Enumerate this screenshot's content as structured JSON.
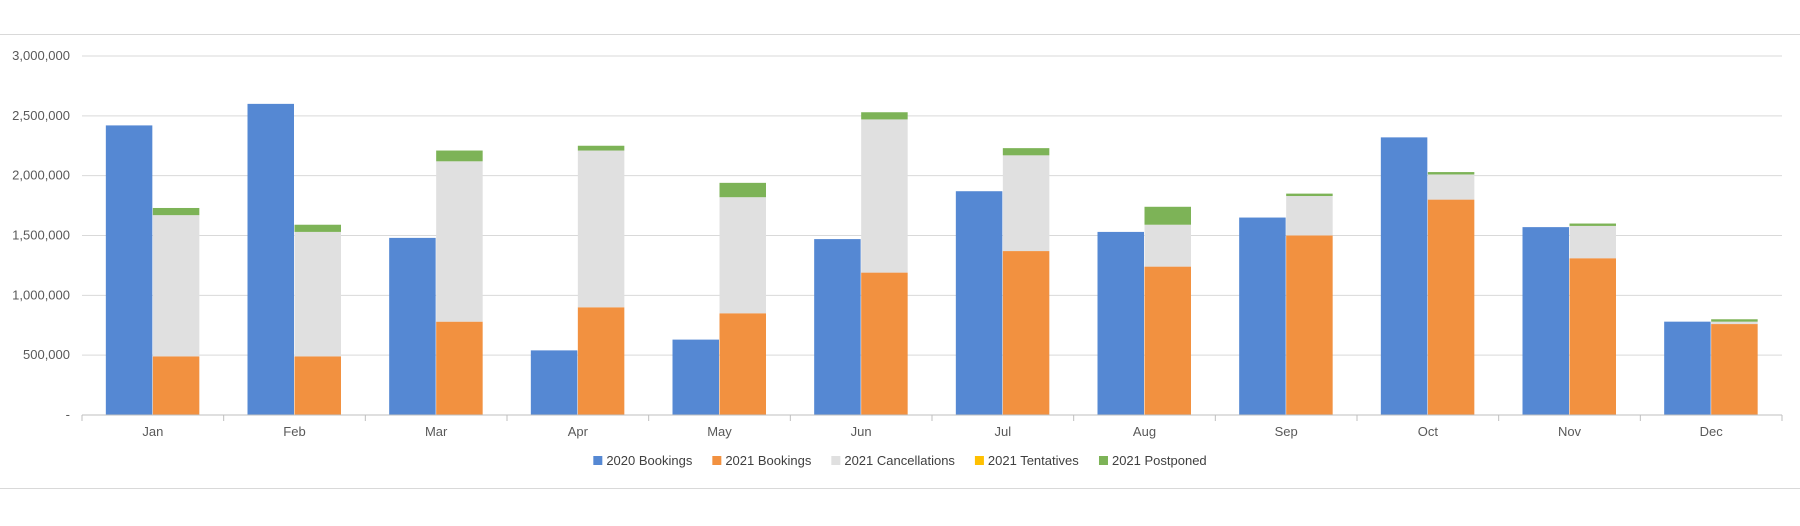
{
  "chart_data": {
    "type": "bar",
    "categories": [
      "Jan",
      "Feb",
      "Mar",
      "Apr",
      "May",
      "Jun",
      "Jul",
      "Aug",
      "Sep",
      "Oct",
      "Nov",
      "Dec"
    ],
    "title": "",
    "xlabel": "",
    "ylabel": "",
    "ylim": [
      0,
      3000000
    ],
    "y_ticks": [
      0,
      500000,
      1000000,
      1500000,
      2000000,
      2500000,
      3000000
    ],
    "y_tick_labels": [
      "-",
      "500,000",
      "1,000,000",
      "1,500,000",
      "2,000,000",
      "2,500,000",
      "3,000,000"
    ],
    "grid": true,
    "legend_position": "bottom",
    "series": [
      {
        "name": "2020 Bookings",
        "color": "#5588d3",
        "stack": "2020",
        "values": [
          2420000,
          2600000,
          1480000,
          540000,
          630000,
          1470000,
          1870000,
          1530000,
          1650000,
          2320000,
          1570000,
          780000
        ]
      },
      {
        "name": "2021 Bookings",
        "color": "#f29140",
        "stack": "2021",
        "values": [
          490000,
          490000,
          780000,
          900000,
          850000,
          1190000,
          1370000,
          1240000,
          1500000,
          1800000,
          1310000,
          760000
        ]
      },
      {
        "name": "2021 Cancellations",
        "color": "#e0e0e0",
        "stack": "2021",
        "values": [
          1180000,
          1040000,
          1340000,
          1310000,
          970000,
          1280000,
          800000,
          350000,
          330000,
          210000,
          270000,
          20000
        ]
      },
      {
        "name": "2021 Tentatives",
        "color": "#ffc000",
        "stack": "2021",
        "values": [
          0,
          0,
          0,
          0,
          0,
          0,
          0,
          0,
          0,
          0,
          0,
          0
        ]
      },
      {
        "name": "2021 Postponed",
        "color": "#7db357",
        "stack": "2021",
        "values": [
          60000,
          60000,
          90000,
          40000,
          120000,
          60000,
          60000,
          150000,
          20000,
          20000,
          20000,
          20000
        ]
      }
    ]
  }
}
